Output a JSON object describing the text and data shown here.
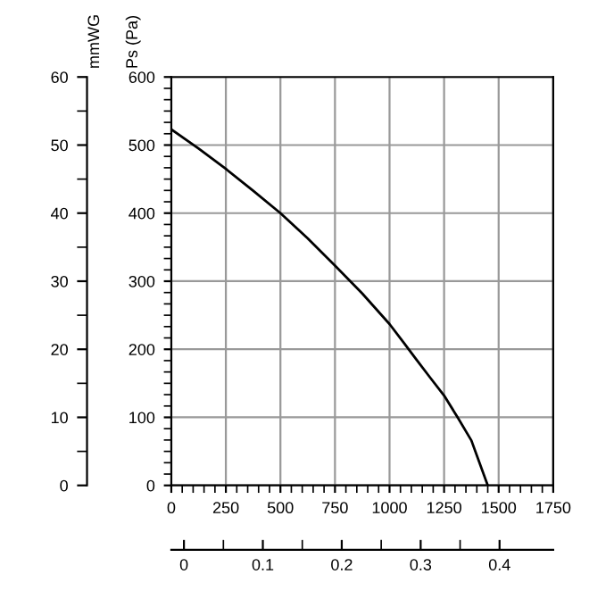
{
  "chart_data": {
    "type": "line",
    "ylabel": "Ps (Pa)",
    "y2label": "mmWG",
    "x": [
      0,
      125,
      250,
      375,
      500,
      625,
      750,
      875,
      1000,
      1062,
      1125,
      1187,
      1250,
      1312,
      1375,
      1450
    ],
    "series": [
      {
        "color": "#000000",
        "values": [
          523,
          495,
          465,
          433,
          400,
          363,
          323,
          282,
          237,
          211,
          184,
          158,
          132,
          100,
          66,
          0
        ]
      }
    ],
    "xlim": [
      0,
      1750
    ],
    "xticks": [
      0,
      250,
      500,
      750,
      1000,
      1250,
      1500,
      1750
    ],
    "ylim": [
      0,
      600
    ],
    "yticks": [
      0,
      100,
      200,
      300,
      400,
      500,
      600
    ],
    "y2lim": [
      0,
      60
    ],
    "y2ticks": [
      0,
      10,
      20,
      30,
      40,
      50,
      60
    ],
    "x2lim": [
      -0.016,
      0.468
    ],
    "x2ticks": [
      0,
      0.1,
      0.2,
      0.3,
      0.4
    ],
    "grid": true,
    "marker": "none",
    "line_style": "solid"
  }
}
